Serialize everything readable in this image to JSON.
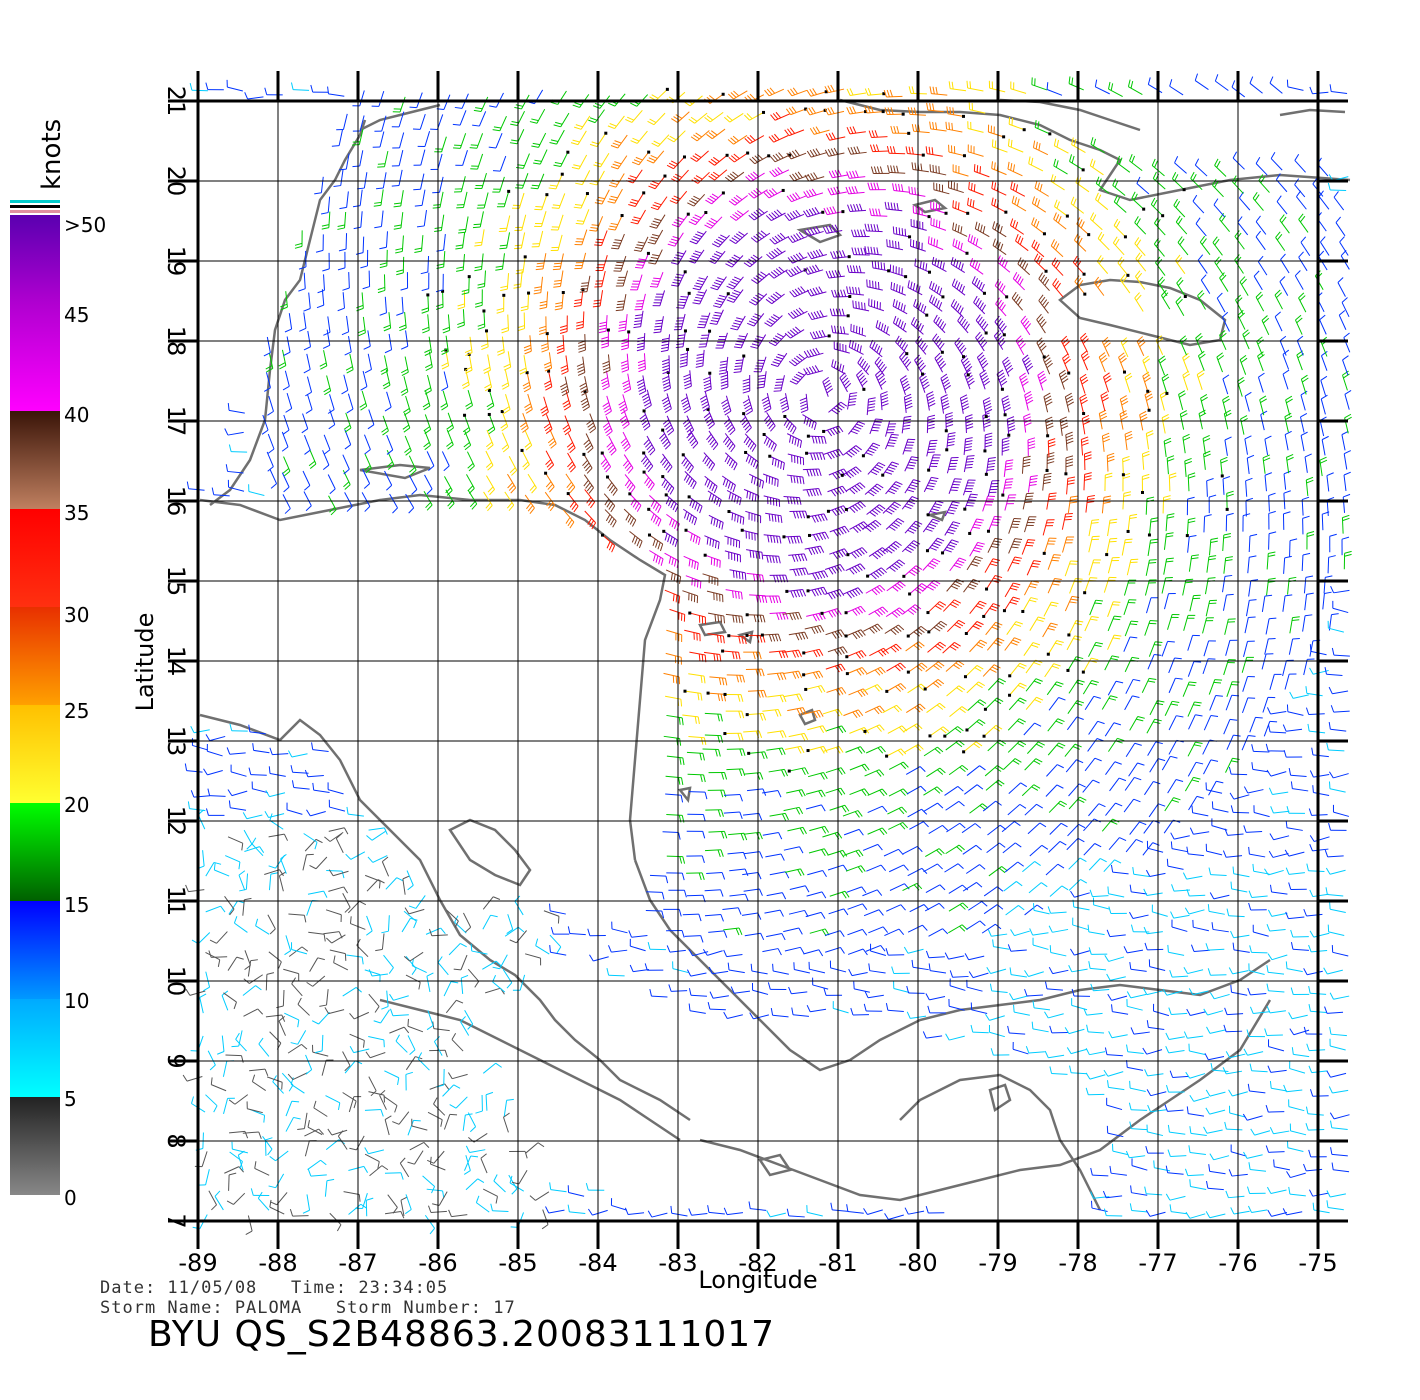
{
  "map": {
    "x_axis_label": "Longitude",
    "y_axis_label": "Latitude",
    "x_ticks": [
      "-89",
      "-88",
      "-87",
      "-86",
      "-85",
      "-84",
      "-83",
      "-82",
      "-81",
      "-80",
      "-79",
      "-78",
      "-77",
      "-76",
      "-75"
    ],
    "y_ticks": [
      "7",
      "8",
      "9",
      "10",
      "11",
      "12",
      "13",
      "14",
      "15",
      "16",
      "17",
      "18",
      "19",
      "20",
      "21"
    ],
    "lon_range": [
      -89,
      -75
    ],
    "lat_range": [
      7,
      21
    ]
  },
  "legend": {
    "unit": "knots",
    "labels": [
      ">50",
      "45",
      "40",
      "35",
      "30",
      "25",
      "20",
      "15",
      "10",
      "5",
      "0"
    ],
    "bands": [
      {
        "range": "45-50",
        "color": "#6a00c8"
      },
      {
        "range": "40-45",
        "color": "#e400e4"
      },
      {
        "range": "35-40",
        "color": "#7a3a22"
      },
      {
        "range": "30-35",
        "color": "#ff1a00"
      },
      {
        "range": "25-30",
        "color": "#ff8000"
      },
      {
        "range": "20-25",
        "color": "#ffe000"
      },
      {
        "range": "15-20",
        "color": "#00c800"
      },
      {
        "range": "10-15",
        "color": "#0033ff"
      },
      {
        "range": "5-10",
        "color": "#00ccff"
      },
      {
        "range": "0-5",
        "color": "#555555"
      }
    ]
  },
  "info": {
    "date_line": "Date: 11/05/08   Time: 23:34:05",
    "storm_line": "Storm Name: PALOMA   Storm Number: 17",
    "file_id": "BYU QS_S2B48863.20083111017"
  },
  "storm": {
    "center_lon": -81.2,
    "center_lat": 17.3
  }
}
